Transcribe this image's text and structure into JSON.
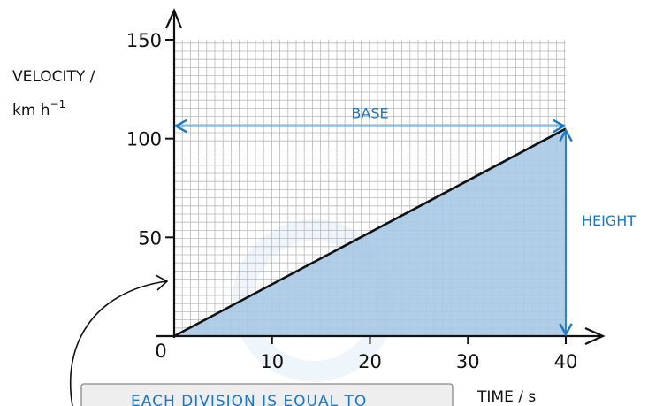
{
  "chart_data": {
    "type": "area",
    "ylabel_line1": "VELOCITY /",
    "ylabel_line2": "km h",
    "ylabel_exponent": "−1",
    "xlabel": "TIME / s",
    "origin_label": "0",
    "xlim": [
      0,
      40
    ],
    "ylim": [
      0,
      150
    ],
    "x_ticks": [
      10,
      20,
      30,
      40
    ],
    "y_ticks": [
      50,
      100,
      150
    ],
    "grid": true,
    "series": [
      {
        "x": [
          0,
          40
        ],
        "y": [
          0,
          105
        ]
      }
    ],
    "annotations": {
      "base": "BASE",
      "height": "HEIGHT",
      "note": "EACH  DIVISION  IS  EQUAL  TO"
    }
  },
  "colors": {
    "grid": "#b9b9b9",
    "axis": "#111111",
    "fill": "#a9c9e6",
    "annotation": "#1a78c2",
    "note_bg": "#eeeeee"
  }
}
